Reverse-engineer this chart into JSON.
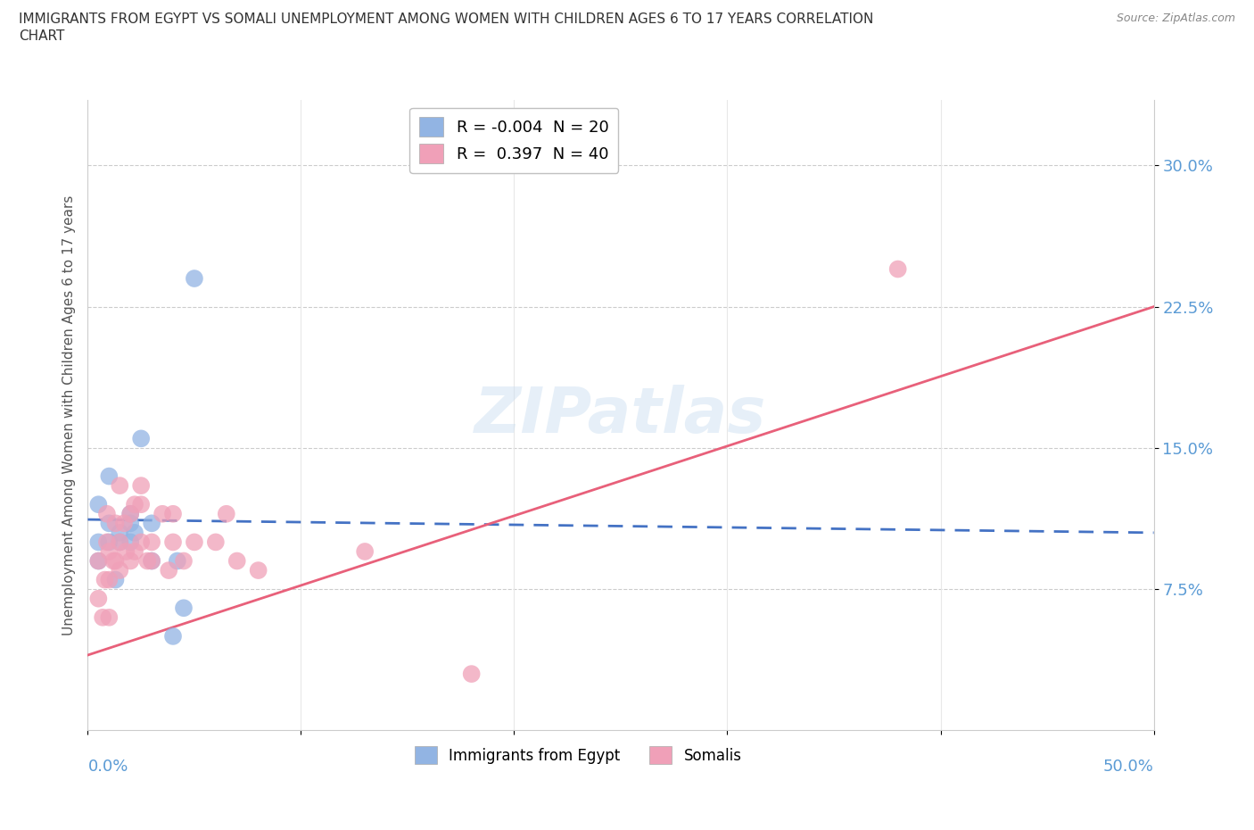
{
  "title_line1": "IMMIGRANTS FROM EGYPT VS SOMALI UNEMPLOYMENT AMONG WOMEN WITH CHILDREN AGES 6 TO 17 YEARS CORRELATION",
  "title_line2": "CHART",
  "source_text": "Source: ZipAtlas.com",
  "ylabel": "Unemployment Among Women with Children Ages 6 to 17 years",
  "ytick_labels": [
    "30.0%",
    "22.5%",
    "15.0%",
    "7.5%"
  ],
  "ytick_values": [
    0.3,
    0.225,
    0.15,
    0.075
  ],
  "xlim": [
    0.0,
    0.5
  ],
  "ylim": [
    0.0,
    0.335
  ],
  "watermark": "ZIPatlas",
  "egypt_color": "#92b4e3",
  "somali_color": "#f0a0b8",
  "egypt_line_color": "#4472c4",
  "somali_line_color": "#e8607a",
  "egypt_R": -0.004,
  "egypt_N": 20,
  "somali_R": 0.397,
  "somali_N": 40,
  "egypt_x": [
    0.005,
    0.005,
    0.005,
    0.01,
    0.01,
    0.01,
    0.013,
    0.015,
    0.015,
    0.02,
    0.02,
    0.02,
    0.022,
    0.025,
    0.03,
    0.03,
    0.04,
    0.042,
    0.045,
    0.05
  ],
  "egypt_y": [
    0.09,
    0.1,
    0.12,
    0.1,
    0.11,
    0.135,
    0.08,
    0.1,
    0.105,
    0.1,
    0.11,
    0.115,
    0.105,
    0.155,
    0.09,
    0.11,
    0.05,
    0.09,
    0.065,
    0.24
  ],
  "somali_x": [
    0.005,
    0.005,
    0.007,
    0.008,
    0.009,
    0.009,
    0.01,
    0.01,
    0.01,
    0.012,
    0.013,
    0.013,
    0.015,
    0.015,
    0.015,
    0.017,
    0.018,
    0.02,
    0.02,
    0.022,
    0.022,
    0.025,
    0.025,
    0.025,
    0.028,
    0.03,
    0.03,
    0.035,
    0.038,
    0.04,
    0.04,
    0.045,
    0.05,
    0.06,
    0.065,
    0.07,
    0.08,
    0.13,
    0.18,
    0.38
  ],
  "somali_y": [
    0.07,
    0.09,
    0.06,
    0.08,
    0.1,
    0.115,
    0.06,
    0.08,
    0.095,
    0.09,
    0.09,
    0.11,
    0.085,
    0.1,
    0.13,
    0.11,
    0.095,
    0.09,
    0.115,
    0.095,
    0.12,
    0.1,
    0.12,
    0.13,
    0.09,
    0.1,
    0.09,
    0.115,
    0.085,
    0.1,
    0.115,
    0.09,
    0.1,
    0.1,
    0.115,
    0.09,
    0.085,
    0.095,
    0.03,
    0.245
  ],
  "egypt_line_x": [
    0.0,
    0.5
  ],
  "egypt_line_y": [
    0.112,
    0.105
  ],
  "somali_line_x": [
    0.0,
    0.5
  ],
  "somali_line_y": [
    0.04,
    0.225
  ]
}
